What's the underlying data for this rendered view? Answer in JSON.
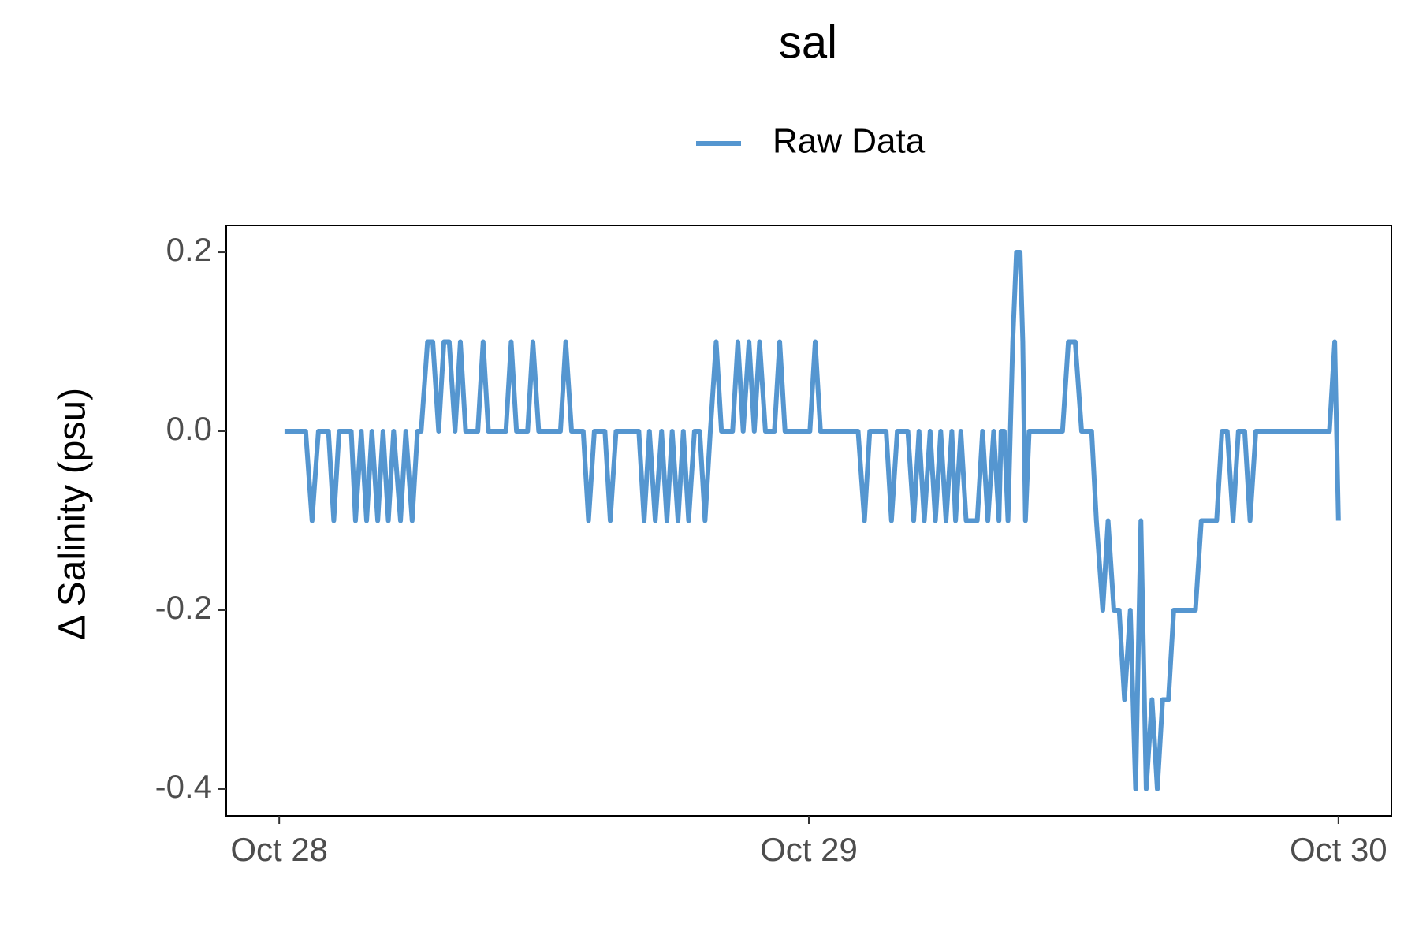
{
  "chart_data": {
    "type": "line",
    "title": "sal",
    "ylabel": "Δ Salinity (psu)",
    "legend": "top",
    "grid": false,
    "x": [
      0.01,
      0.05,
      0.062,
      0.074,
      0.093,
      0.103,
      0.113,
      0.136,
      0.144,
      0.155,
      0.165,
      0.175,
      0.186,
      0.196,
      0.206,
      0.216,
      0.229,
      0.239,
      0.251,
      0.261,
      0.268,
      0.28,
      0.29,
      0.301,
      0.311,
      0.321,
      0.332,
      0.342,
      0.352,
      0.375,
      0.385,
      0.395,
      0.428,
      0.438,
      0.448,
      0.469,
      0.479,
      0.49,
      0.531,
      0.541,
      0.552,
      0.574,
      0.584,
      0.595,
      0.615,
      0.625,
      0.636,
      0.679,
      0.689,
      0.699,
      0.71,
      0.722,
      0.732,
      0.742,
      0.753,
      0.763,
      0.773,
      0.784,
      0.794,
      0.804,
      0.814,
      0.825,
      0.835,
      0.856,
      0.866,
      0.876,
      0.887,
      0.897,
      0.907,
      0.918,
      0.935,
      0.945,
      0.955,
      1.002,
      1.012,
      1.022,
      1.093,
      1.105,
      1.115,
      1.146,
      1.156,
      1.167,
      1.187,
      1.198,
      1.208,
      1.218,
      1.229,
      1.239,
      1.249,
      1.259,
      1.27,
      1.277,
      1.287,
      1.297,
      1.318,
      1.328,
      1.338,
      1.349,
      1.359,
      1.363,
      1.369,
      1.376,
      1.385,
      1.392,
      1.399,
      1.404,
      1.409,
      1.416,
      1.479,
      1.49,
      1.503,
      1.515,
      1.534,
      1.543,
      1.555,
      1.565,
      1.576,
      1.586,
      1.596,
      1.607,
      1.617,
      1.627,
      1.637,
      1.648,
      1.658,
      1.668,
      1.679,
      1.689,
      1.73,
      1.741,
      1.77,
      1.78,
      1.79,
      1.801,
      1.811,
      1.823,
      1.833,
      1.844,
      1.983,
      1.993,
      2.0
    ],
    "series": [
      {
        "name": "Raw Data",
        "color": "#5596d0",
        "values": [
          0,
          0,
          -0.1,
          0,
          0,
          -0.1,
          0,
          0,
          -0.1,
          0,
          -0.1,
          0,
          -0.1,
          0,
          -0.1,
          0,
          -0.1,
          0,
          -0.1,
          0,
          0,
          0.1,
          0.1,
          0,
          0.1,
          0.1,
          0,
          0.1,
          0,
          0,
          0.1,
          0,
          0,
          0.1,
          0,
          0,
          0.1,
          0,
          0,
          0.1,
          0,
          0,
          -0.1,
          0,
          0,
          -0.1,
          0,
          0,
          -0.1,
          0,
          -0.1,
          0,
          -0.1,
          0,
          -0.1,
          0,
          -0.1,
          0,
          0,
          -0.1,
          0,
          0.1,
          0,
          0,
          0.1,
          0,
          0.1,
          0,
          0.1,
          0,
          0,
          0.1,
          0,
          0,
          0.1,
          0,
          0,
          -0.1,
          0,
          0,
          -0.1,
          0,
          0,
          -0.1,
          0,
          -0.1,
          0,
          -0.1,
          0,
          -0.1,
          0,
          -0.1,
          0,
          -0.1,
          -0.1,
          0,
          -0.1,
          0,
          -0.1,
          0,
          0,
          -0.1,
          0.1,
          0.2,
          0.2,
          0.1,
          -0.1,
          0,
          0,
          0.1,
          0.1,
          0,
          0,
          -0.1,
          -0.2,
          -0.1,
          -0.2,
          -0.2,
          -0.3,
          -0.2,
          -0.4,
          -0.1,
          -0.4,
          -0.3,
          -0.4,
          -0.3,
          -0.3,
          -0.2,
          -0.2,
          -0.1,
          -0.1,
          0,
          0,
          -0.1,
          0,
          0,
          -0.1,
          0,
          0,
          0.1,
          -0.1
        ]
      }
    ],
    "xlim": [
      -0.1,
      2.1
    ],
    "xticks": [
      {
        "value": 0,
        "label": "Oct 28"
      },
      {
        "value": 1,
        "label": "Oct 29"
      },
      {
        "value": 2,
        "label": "Oct 30"
      }
    ],
    "ylim": [
      -0.43,
      0.23
    ],
    "yticks": [
      {
        "value": -0.4,
        "label": "-0.4"
      },
      {
        "value": -0.2,
        "label": "-0.2"
      },
      {
        "value": 0,
        "label": "0.0"
      },
      {
        "value": 0.2,
        "label": "0.2"
      }
    ]
  }
}
